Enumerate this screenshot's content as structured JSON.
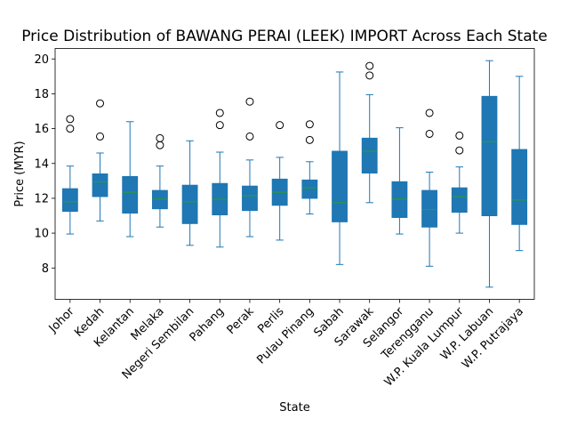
{
  "chart_data": {
    "type": "box",
    "title": "Price Distribution of BAWANG PERAI (LEEK) IMPORT Across Each State",
    "xlabel": "State",
    "ylabel": "Price (MYR)",
    "ylim": [
      6.2,
      20.6
    ],
    "yticks": [
      8,
      10,
      12,
      14,
      16,
      18,
      20
    ],
    "grid": false,
    "legend": "none",
    "colors": {
      "box": "#1f77b4",
      "median": "#2ca02c",
      "whisker": "#1f77b4",
      "flier": "#000000"
    },
    "categories": [
      "Johor",
      "Kedah",
      "Kelantan",
      "Melaka",
      "Negeri Sembilan",
      "Pahang",
      "Perak",
      "Perlis",
      "Pulau Pinang",
      "Sabah",
      "Sarawak",
      "Selangor",
      "Terengganu",
      "W.P. Kuala Lumpur",
      "W.P. Labuan",
      "W.P. Putrajaya"
    ],
    "boxes": [
      {
        "state": "Johor",
        "whisker_low": 9.95,
        "q1": 11.25,
        "median": 11.8,
        "q3": 12.55,
        "whisker_high": 13.85,
        "outliers": [
          16.0,
          16.55
        ]
      },
      {
        "state": "Kedah",
        "whisker_low": 10.7,
        "q1": 12.1,
        "median": 12.95,
        "q3": 13.4,
        "whisker_high": 14.6,
        "outliers": [
          15.55,
          17.45
        ]
      },
      {
        "state": "Kelantan",
        "whisker_low": 9.8,
        "q1": 11.15,
        "median": 12.35,
        "q3": 13.25,
        "whisker_high": 16.4,
        "outliers": []
      },
      {
        "state": "Melaka",
        "whisker_low": 10.35,
        "q1": 11.4,
        "median": 11.95,
        "q3": 12.45,
        "whisker_high": 13.85,
        "outliers": [
          15.05,
          15.45
        ]
      },
      {
        "state": "Negeri Sembilan",
        "whisker_low": 9.3,
        "q1": 10.55,
        "median": 11.8,
        "q3": 12.75,
        "whisker_high": 15.3,
        "outliers": []
      },
      {
        "state": "Pahang",
        "whisker_low": 9.2,
        "q1": 11.05,
        "median": 11.95,
        "q3": 12.85,
        "whisker_high": 14.65,
        "outliers": [
          16.2,
          16.9
        ]
      },
      {
        "state": "Perak",
        "whisker_low": 9.8,
        "q1": 11.3,
        "median": 12.15,
        "q3": 12.7,
        "whisker_high": 14.2,
        "outliers": [
          15.55,
          17.55
        ]
      },
      {
        "state": "Perlis",
        "whisker_low": 9.6,
        "q1": 11.6,
        "median": 12.35,
        "q3": 13.1,
        "whisker_high": 14.35,
        "outliers": [
          16.2
        ]
      },
      {
        "state": "Pulau Pinang",
        "whisker_low": 11.1,
        "q1": 12.0,
        "median": 12.6,
        "q3": 13.05,
        "whisker_high": 14.1,
        "outliers": [
          15.35,
          16.25
        ]
      },
      {
        "state": "Sabah",
        "whisker_low": 8.2,
        "q1": 10.65,
        "median": 11.75,
        "q3": 14.7,
        "whisker_high": 19.25,
        "outliers": []
      },
      {
        "state": "Sarawak",
        "whisker_low": 11.75,
        "q1": 13.45,
        "median": 14.7,
        "q3": 15.45,
        "whisker_high": 17.95,
        "outliers": [
          19.05,
          19.6
        ]
      },
      {
        "state": "Selangor",
        "whisker_low": 9.95,
        "q1": 10.9,
        "median": 11.95,
        "q3": 12.95,
        "whisker_high": 16.05,
        "outliers": []
      },
      {
        "state": "Terengganu",
        "whisker_low": 8.1,
        "q1": 10.35,
        "median": 11.35,
        "q3": 12.45,
        "whisker_high": 13.5,
        "outliers": [
          15.7,
          16.9
        ]
      },
      {
        "state": "W.P. Kuala Lumpur",
        "whisker_low": 10.0,
        "q1": 11.2,
        "median": 12.1,
        "q3": 12.6,
        "whisker_high": 13.8,
        "outliers": [
          14.75,
          15.6
        ]
      },
      {
        "state": "W.P. Labuan",
        "whisker_low": 6.9,
        "q1": 11.0,
        "median": 15.25,
        "q3": 17.85,
        "whisker_high": 19.9,
        "outliers": []
      },
      {
        "state": "W.P. Putrajaya",
        "whisker_low": 9.0,
        "q1": 10.5,
        "median": 11.9,
        "q3": 14.8,
        "whisker_high": 19.0,
        "outliers": []
      }
    ]
  }
}
